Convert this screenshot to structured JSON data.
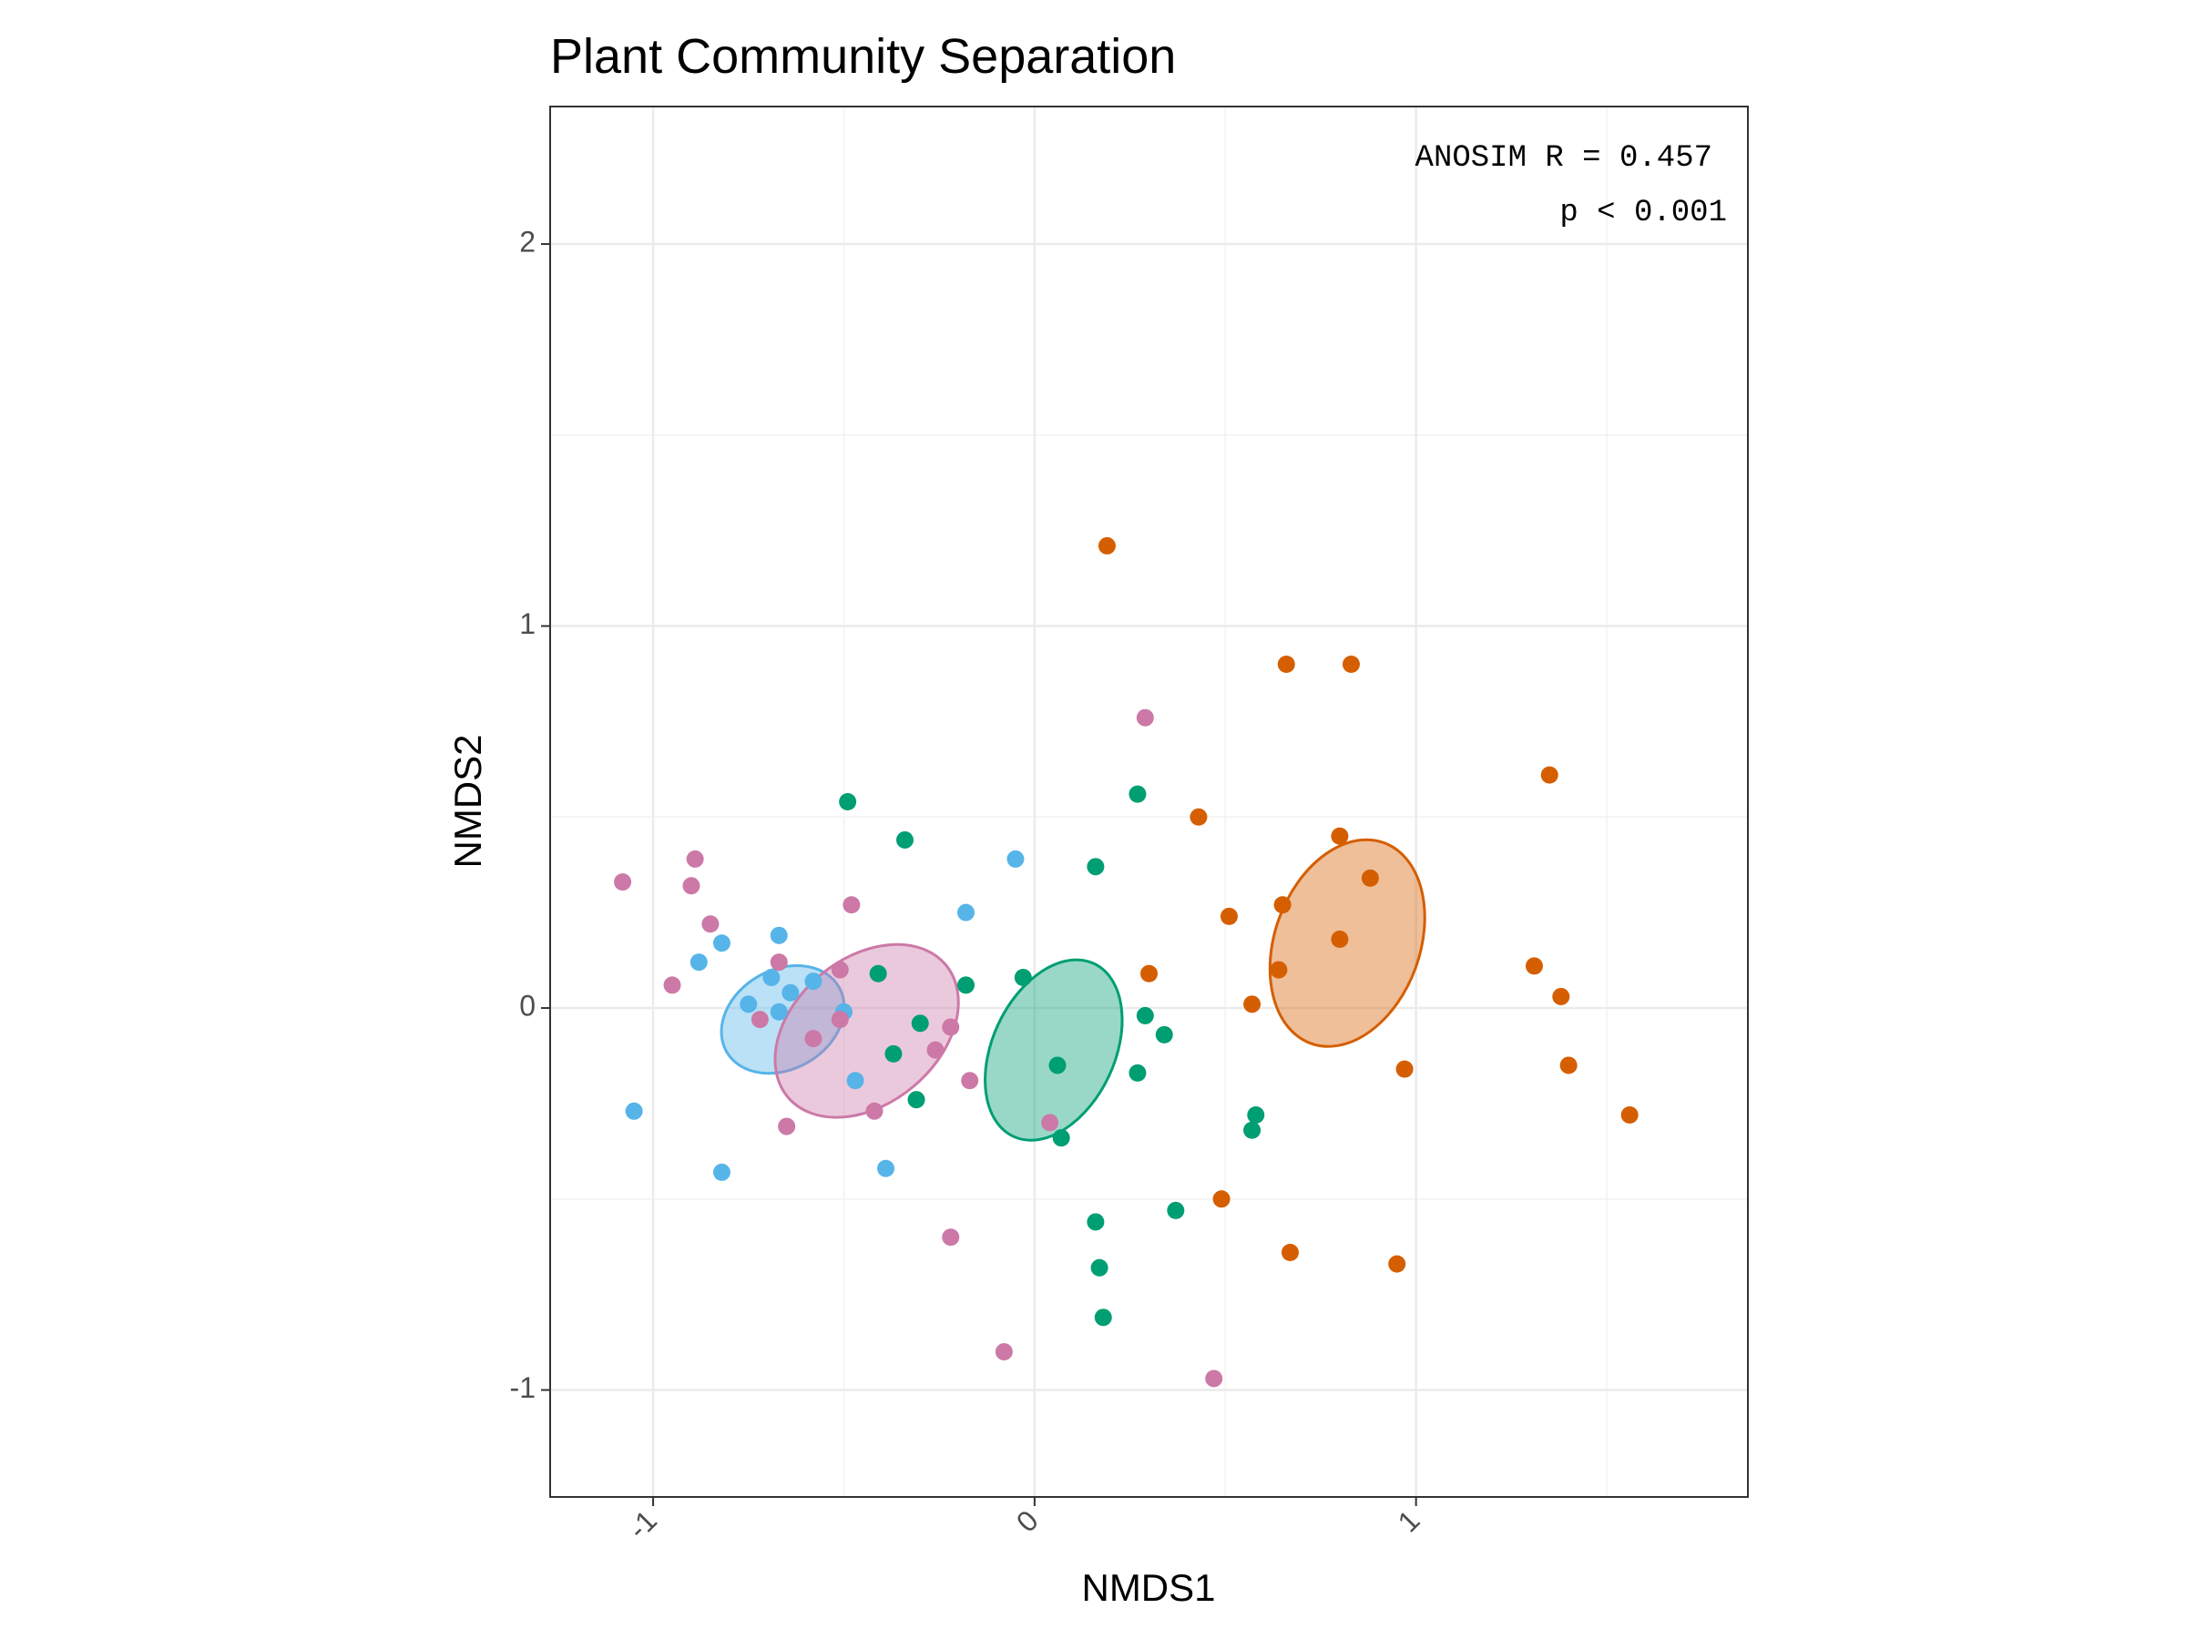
{
  "chart_data": {
    "type": "scatter",
    "title": "Plant Community Separation",
    "xlabel": "NMDS1",
    "ylabel": "NMDS2",
    "xlim": [
      -1.27,
      1.87
    ],
    "ylim": [
      -1.28,
      2.36
    ],
    "x_ticks": [
      -1,
      0,
      1
    ],
    "y_ticks": [
      -1,
      0,
      1,
      2
    ],
    "x_tick_labels": [
      "-1",
      "0",
      "1"
    ],
    "y_tick_labels": [
      "-1",
      "0",
      "1",
      "2"
    ],
    "grid": true,
    "legend": "none",
    "annotation": {
      "line1": "ANOSIM R = 0.457",
      "line2": "p < 0.001"
    },
    "series": [
      {
        "color": "#56B4E9",
        "points": [
          [
            -1.05,
            -0.27
          ],
          [
            -0.82,
            -0.43
          ],
          [
            -0.88,
            0.12
          ],
          [
            -0.82,
            0.17
          ],
          [
            -0.67,
            0.19
          ],
          [
            -0.69,
            0.08
          ],
          [
            -0.75,
            0.01
          ],
          [
            -0.64,
            0.04
          ],
          [
            -0.58,
            0.07
          ],
          [
            -0.67,
            -0.01
          ],
          [
            -0.5,
            -0.01
          ],
          [
            -0.47,
            -0.19
          ],
          [
            -0.39,
            -0.42
          ],
          [
            -0.18,
            0.25
          ],
          [
            -0.05,
            0.39
          ]
        ],
        "ellipse": {
          "cx": -0.66,
          "cy": -0.03,
          "rx": 0.17,
          "ry": 0.13,
          "angle_deg": -30
        }
      },
      {
        "color": "#CC79A7",
        "points": [
          [
            -1.08,
            0.33
          ],
          [
            -0.9,
            0.32
          ],
          [
            -0.89,
            0.39
          ],
          [
            -0.85,
            0.22
          ],
          [
            -0.95,
            0.06
          ],
          [
            -0.72,
            -0.03
          ],
          [
            -0.67,
            0.12
          ],
          [
            -0.51,
            0.1
          ],
          [
            -0.48,
            0.27
          ],
          [
            -0.58,
            -0.08
          ],
          [
            -0.51,
            -0.03
          ],
          [
            -0.65,
            -0.31
          ],
          [
            -0.42,
            -0.27
          ],
          [
            -0.22,
            -0.05
          ],
          [
            -0.26,
            -0.11
          ],
          [
            -0.17,
            -0.19
          ],
          [
            -0.22,
            -0.6
          ],
          [
            -0.08,
            -0.9
          ],
          [
            0.04,
            -0.3
          ],
          [
            0.29,
            0.76
          ],
          [
            0.47,
            -0.97
          ]
        ],
        "ellipse": {
          "cx": -0.44,
          "cy": -0.06,
          "rx": 0.27,
          "ry": 0.19,
          "angle_deg": -40
        }
      },
      {
        "color": "#009E73",
        "points": [
          [
            -0.49,
            0.54
          ],
          [
            -0.34,
            0.44
          ],
          [
            -0.41,
            0.09
          ],
          [
            -0.3,
            -0.04
          ],
          [
            -0.37,
            -0.12
          ],
          [
            -0.31,
            -0.24
          ],
          [
            -0.18,
            0.06
          ],
          [
            -0.03,
            0.08
          ],
          [
            0.06,
            -0.15
          ],
          [
            0.07,
            -0.34
          ],
          [
            0.16,
            0.37
          ],
          [
            0.27,
            0.56
          ],
          [
            0.29,
            -0.02
          ],
          [
            0.34,
            -0.07
          ],
          [
            0.27,
            -0.17
          ],
          [
            0.16,
            -0.56
          ],
          [
            0.17,
            -0.68
          ],
          [
            0.18,
            -0.81
          ],
          [
            0.37,
            -0.53
          ],
          [
            0.58,
            -0.28
          ],
          [
            0.57,
            -0.32
          ]
        ],
        "ellipse": {
          "cx": 0.05,
          "cy": -0.11,
          "rx": 0.25,
          "ry": 0.16,
          "angle_deg": -65
        }
      },
      {
        "color": "#D55E00",
        "points": [
          [
            0.19,
            1.21
          ],
          [
            0.66,
            0.9
          ],
          [
            0.83,
            0.9
          ],
          [
            0.43,
            0.5
          ],
          [
            0.51,
            0.24
          ],
          [
            0.65,
            0.27
          ],
          [
            0.8,
            0.45
          ],
          [
            0.88,
            0.34
          ],
          [
            0.8,
            0.18
          ],
          [
            0.64,
            0.1
          ],
          [
            0.57,
            0.01
          ],
          [
            0.3,
            0.09
          ],
          [
            0.97,
            -0.16
          ],
          [
            1.35,
            0.61
          ],
          [
            1.31,
            0.11
          ],
          [
            1.38,
            0.03
          ],
          [
            1.4,
            -0.15
          ],
          [
            1.56,
            -0.28
          ],
          [
            0.49,
            -0.5
          ],
          [
            0.67,
            -0.64
          ],
          [
            0.95,
            -0.67
          ]
        ],
        "ellipse": {
          "cx": 0.82,
          "cy": 0.17,
          "rx": 0.28,
          "ry": 0.19,
          "angle_deg": -70
        }
      }
    ]
  }
}
